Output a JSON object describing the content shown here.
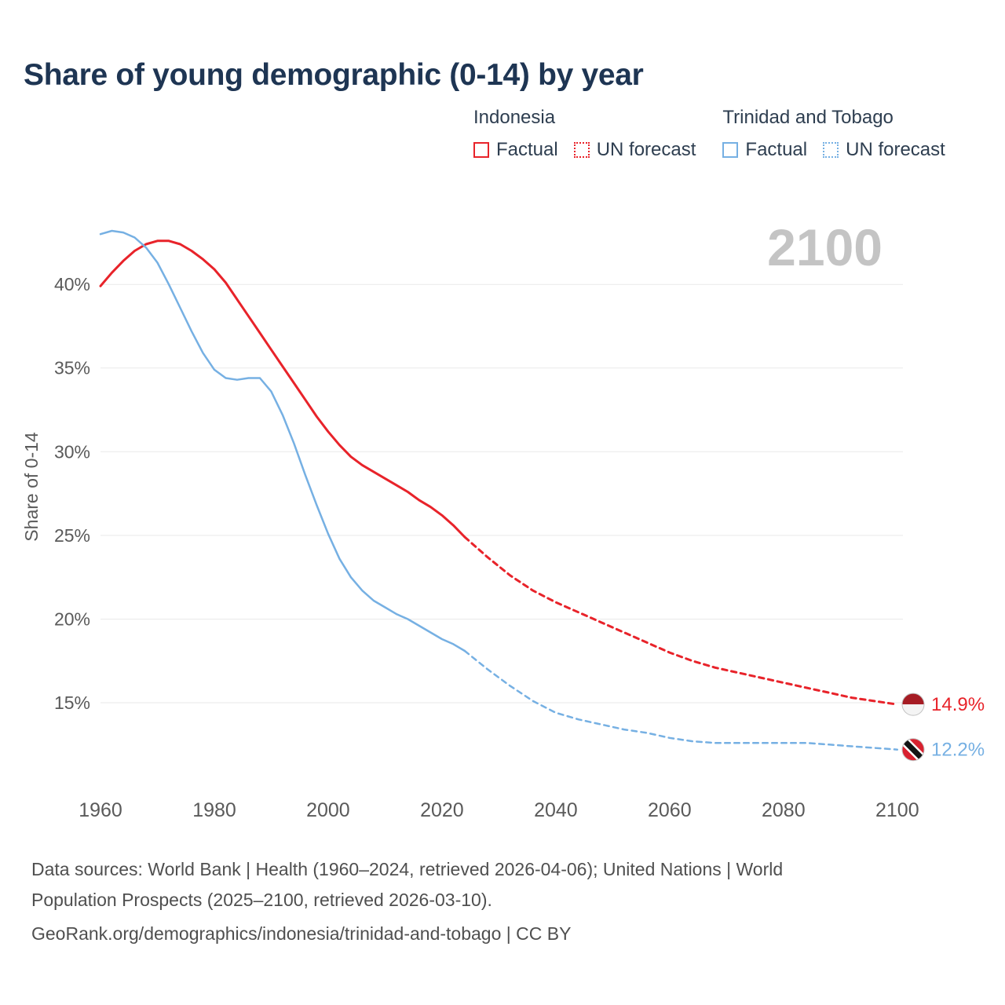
{
  "title": "Share of young demographic (0-14) by year",
  "legend": {
    "groups": [
      {
        "name": "Indonesia",
        "color": "#e8232a",
        "items": [
          {
            "label": "Factual",
            "style": "solid"
          },
          {
            "label": "UN forecast",
            "style": "dotted"
          }
        ]
      },
      {
        "name": "Trinidad and Tobago",
        "color": "#76b0e3",
        "items": [
          {
            "label": "Factual",
            "style": "solid"
          },
          {
            "label": "UN forecast",
            "style": "dotted"
          }
        ]
      }
    ]
  },
  "chart_data": {
    "type": "line",
    "title": "Share of young demographic (0-14) by year",
    "xlabel": "",
    "ylabel": "Share of 0-14",
    "watermark": "2100",
    "grid": "horizontal",
    "legend_position": "top-right",
    "xlim": [
      1960,
      2101
    ],
    "ylim": [
      9.7,
      44.7
    ],
    "xticks": [
      1960,
      1980,
      2000,
      2020,
      2040,
      2060,
      2080,
      2100
    ],
    "yticks": [
      15,
      20,
      25,
      30,
      35,
      40
    ],
    "ytick_suffix": "%",
    "series": [
      {
        "name": "Indonesia Factual",
        "color": "#e8232a",
        "dash": "solid",
        "x": [
          1960,
          1962,
          1964,
          1966,
          1968,
          1970,
          1972,
          1974,
          1976,
          1978,
          1980,
          1982,
          1984,
          1986,
          1988,
          1990,
          1992,
          1994,
          1996,
          1998,
          2000,
          2002,
          2004,
          2006,
          2008,
          2010,
          2012,
          2014,
          2016,
          2018,
          2020,
          2022,
          2024
        ],
        "y": [
          39.9,
          40.7,
          41.4,
          42.0,
          42.4,
          42.6,
          42.6,
          42.4,
          42.0,
          41.5,
          40.9,
          40.1,
          39.1,
          38.1,
          37.1,
          36.1,
          35.1,
          34.1,
          33.1,
          32.1,
          31.2,
          30.4,
          29.7,
          29.2,
          28.8,
          28.4,
          28.0,
          27.6,
          27.1,
          26.7,
          26.2,
          25.6,
          24.9
        ]
      },
      {
        "name": "Indonesia UN forecast",
        "color": "#e8232a",
        "dash": "dashed",
        "x": [
          2024,
          2028,
          2032,
          2036,
          2040,
          2044,
          2048,
          2052,
          2056,
          2060,
          2064,
          2068,
          2072,
          2076,
          2080,
          2084,
          2088,
          2092,
          2096,
          2100
        ],
        "y": [
          24.9,
          23.7,
          22.6,
          21.7,
          21.0,
          20.4,
          19.8,
          19.2,
          18.6,
          18.0,
          17.5,
          17.1,
          16.8,
          16.5,
          16.2,
          15.9,
          15.6,
          15.3,
          15.1,
          14.9
        ]
      },
      {
        "name": "Trinidad and Tobago Factual",
        "color": "#76b0e3",
        "dash": "solid",
        "x": [
          1960,
          1962,
          1964,
          1966,
          1968,
          1970,
          1972,
          1974,
          1976,
          1978,
          1980,
          1982,
          1984,
          1986,
          1988,
          1990,
          1992,
          1994,
          1996,
          1998,
          2000,
          2002,
          2004,
          2006,
          2008,
          2010,
          2012,
          2014,
          2016,
          2018,
          2020,
          2022,
          2024
        ],
        "y": [
          43.0,
          43.2,
          43.1,
          42.8,
          42.2,
          41.3,
          40.0,
          38.6,
          37.2,
          35.9,
          34.9,
          34.4,
          34.3,
          34.4,
          34.4,
          33.6,
          32.2,
          30.5,
          28.6,
          26.8,
          25.1,
          23.6,
          22.5,
          21.7,
          21.1,
          20.7,
          20.3,
          20.0,
          19.6,
          19.2,
          18.8,
          18.5,
          18.1
        ]
      },
      {
        "name": "Trinidad and Tobago UN forecast",
        "color": "#76b0e3",
        "dash": "dashed",
        "x": [
          2024,
          2028,
          2032,
          2036,
          2040,
          2044,
          2048,
          2052,
          2056,
          2060,
          2064,
          2068,
          2072,
          2076,
          2080,
          2084,
          2088,
          2092,
          2096,
          2100
        ],
        "y": [
          18.1,
          17.0,
          16.0,
          15.1,
          14.4,
          14.0,
          13.7,
          13.4,
          13.2,
          12.9,
          12.7,
          12.6,
          12.6,
          12.6,
          12.6,
          12.6,
          12.5,
          12.4,
          12.3,
          12.2
        ]
      }
    ],
    "end_labels": [
      {
        "series": "Indonesia",
        "text": "14.9%",
        "value": 14.9,
        "year": 2100,
        "color": "#e8232a",
        "flag": "indonesia"
      },
      {
        "series": "Trinidad and Tobago",
        "text": "12.2%",
        "value": 12.2,
        "year": 2100,
        "color": "#76b0e3",
        "flag": "trinidad-and-tobago"
      }
    ]
  },
  "footer": {
    "line1": "Data sources: World Bank | Health (1960–2024, retrieved 2026-04-06); United Nations | World",
    "line2": "Population Prospects (2025–2100, retrieved 2026-03-10).",
    "line3": "GeoRank.org/demographics/indonesia/trinidad-and-tobago | CC BY"
  },
  "colors": {
    "indonesia": "#e8232a",
    "trinidad_and_tobago": "#76b0e3",
    "title": "#1e3553",
    "legend_text": "#2e3e50",
    "axis_text": "#5a5a5a",
    "grid": "#e9e9e9",
    "watermark": "#c4c4c4",
    "footer_text": "#4f4f4f"
  }
}
